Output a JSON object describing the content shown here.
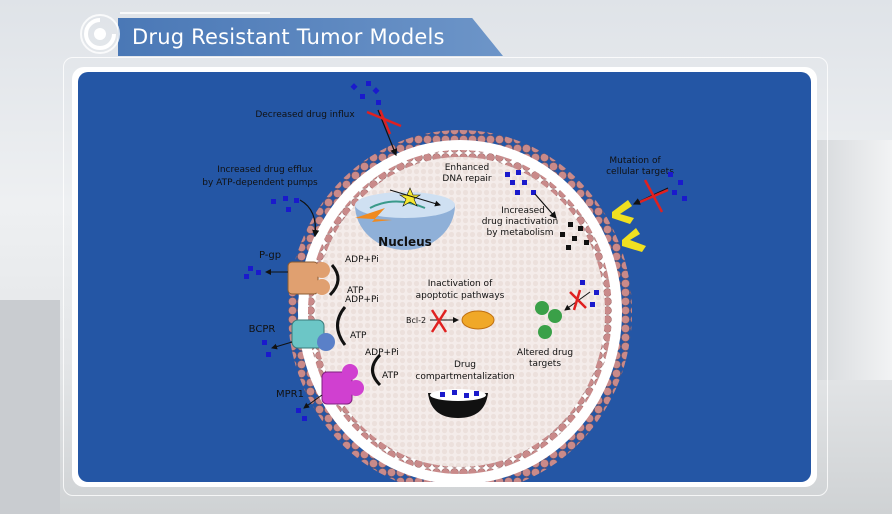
{
  "header": {
    "title": "Drug Resistant Tumor Models"
  },
  "diagram": {
    "labels": {
      "influx": "Decreased drug influx",
      "efflux_1": "Increased drug efflux",
      "efflux_2": "by ATP-dependent pumps",
      "dna_1": "Enhanced",
      "dna_2": "DNA repair",
      "nucleus": "Nucleus",
      "inact_1": "Increased",
      "inact_2": "drug inactivation",
      "inact_3": "by metabolism",
      "mutation_1": "Mutation of",
      "mutation_2": "cellular targets",
      "pgp": "P-gp",
      "bcpr": "BCPR",
      "mpr1": "MPR1",
      "adp": "ADP+Pi",
      "atp": "ATP",
      "apop_1": "Inactivation of",
      "apop_2": "apoptotic pathways",
      "bcl2": "Bcl-2",
      "altered_1": "Altered drug",
      "altered_2": "targets",
      "comp_1": "Drug",
      "comp_2": "compartmentalization"
    },
    "colors": {
      "background": "#2456a5",
      "membrane": "#c98a8a",
      "cytoplasm": "#f3ebe8",
      "drug": "#1a1acc",
      "block": "#e02020",
      "pgp": "#e0a070",
      "bcpr": "#6cc6c6",
      "mpr1": "#d040d0"
    }
  }
}
